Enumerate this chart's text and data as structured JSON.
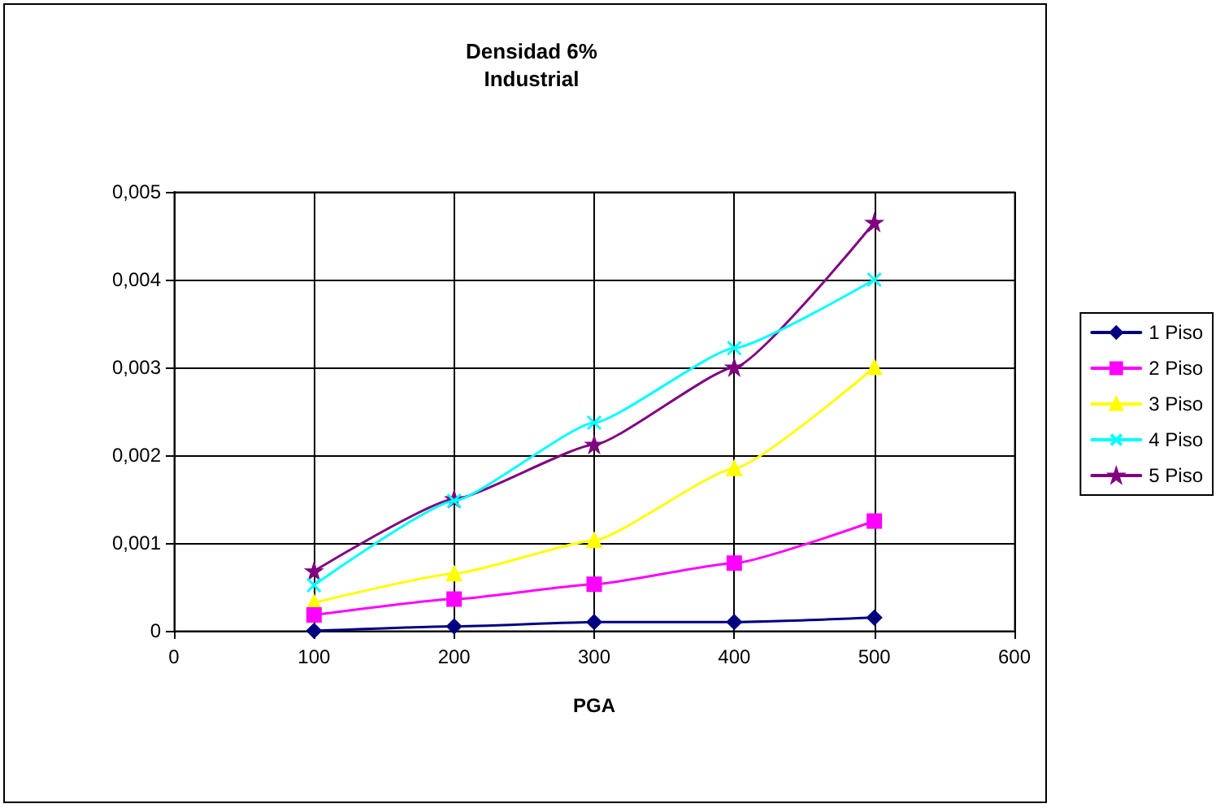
{
  "chart_data": {
    "type": "line",
    "title": "Densidad 6%",
    "subtitle": "Industrial",
    "xlabel": "PGA",
    "x": [
      100,
      200,
      300,
      400,
      500
    ],
    "series": [
      {
        "name": "1 Piso",
        "color": "#000080",
        "marker": "diamond",
        "values": [
          0,
          5e-05,
          0.0001,
          0.0001,
          0.00015
        ]
      },
      {
        "name": "2 Piso",
        "color": "#ff00ff",
        "marker": "square",
        "values": [
          0.00018,
          0.00036,
          0.00053,
          0.00077,
          0.00125
        ]
      },
      {
        "name": "3 Piso",
        "color": "#ffff00",
        "marker": "triangle",
        "values": [
          0.00032,
          0.00065,
          0.00103,
          0.00185,
          0.003
        ]
      },
      {
        "name": "4 Piso",
        "color": "#00ffff",
        "marker": "cross",
        "values": [
          0.00052,
          0.00148,
          0.00237,
          0.00322,
          0.004
        ]
      },
      {
        "name": "5 Piso",
        "color": "#800080",
        "marker": "star",
        "values": [
          0.00068,
          0.0015,
          0.00212,
          0.003,
          0.00465
        ]
      }
    ],
    "xlim": [
      0,
      600
    ],
    "xticks": [
      0,
      100,
      200,
      300,
      400,
      500,
      600
    ],
    "ylim": [
      0,
      0.005
    ],
    "yticks": [
      {
        "value": 0,
        "label": "0"
      },
      {
        "value": 0.001,
        "label": "0,001"
      },
      {
        "value": 0.002,
        "label": "0,002"
      },
      {
        "value": 0.003,
        "label": "0,003"
      },
      {
        "value": 0.004,
        "label": "0,004"
      },
      {
        "value": 0.005,
        "label": "0,005"
      }
    ],
    "grid": true,
    "legend": "right",
    "line_style": "solid"
  }
}
